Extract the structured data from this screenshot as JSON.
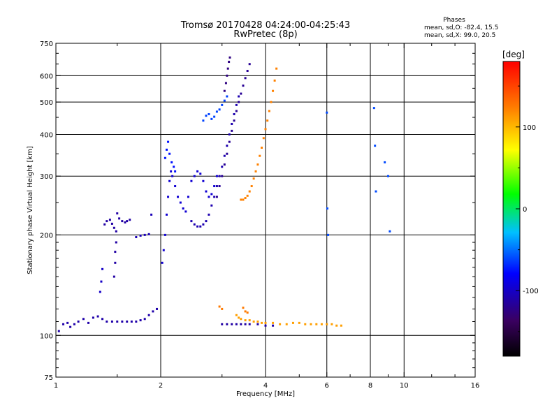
{
  "chart_data": {
    "type": "scatter",
    "title": "Tromsø 20170428 04:24:00-04:25:43",
    "subtitle": "RwPretec (8p)",
    "stats": {
      "heading": "Phases",
      "line1": "mean, sd,O: -82.4, 15.5",
      "line2": "mean, sd,X:  99.0, 20.5"
    },
    "xlabel": "Frequency [MHz]",
    "ylabel": "Stationary phase Virtual Height [km]",
    "x_scale": "log",
    "y_scale": "log",
    "xlim": [
      1,
      16
    ],
    "ylim": [
      75,
      750
    ],
    "grid": true,
    "x_ticks": [
      {
        "value": 1,
        "label": "1"
      },
      {
        "value": 2,
        "label": "2"
      },
      {
        "value": 4,
        "label": "4"
      },
      {
        "value": 6,
        "label": "6"
      },
      {
        "value": 8,
        "label": "8"
      },
      {
        "value": 10,
        "label": "10"
      },
      {
        "value": 16,
        "label": "16"
      }
    ],
    "x_gridlines": [
      2,
      4,
      6,
      8,
      10
    ],
    "x_minor_ticks": [
      1.5,
      3,
      5,
      7,
      9,
      12,
      14
    ],
    "y_ticks": [
      {
        "value": 75,
        "label": "75"
      },
      {
        "value": 100,
        "label": "100"
      },
      {
        "value": 200,
        "label": "200"
      },
      {
        "value": 300,
        "label": "300"
      },
      {
        "value": 400,
        "label": "400"
      },
      {
        "value": 500,
        "label": "500"
      },
      {
        "value": 600,
        "label": "600"
      },
      {
        "value": 750,
        "label": "750"
      }
    ],
    "y_gridlines": [
      100,
      200,
      300,
      400,
      500,
      600
    ],
    "y_minor_ticks": [
      80,
      85,
      90,
      95,
      110,
      120,
      130,
      140,
      150,
      160,
      170,
      180,
      190,
      250,
      350,
      450,
      550,
      650,
      700
    ],
    "colorbar": {
      "label": "[deg]",
      "min": -180,
      "max": 180,
      "ticks": [
        {
          "value": 100,
          "label": "100"
        },
        {
          "value": 0,
          "label": "0"
        },
        {
          "value": -100,
          "label": "-100"
        }
      ],
      "minor_ticks": [
        -150,
        -50,
        50,
        150
      ],
      "colors": [
        "#000000",
        "#3a0060",
        "#0000ff",
        "#00c0ff",
        "#00ff00",
        "#ffff00",
        "#ff8000",
        "#ff0000"
      ]
    },
    "series": [
      {
        "x": [
          1.02,
          1.05,
          1.08,
          1.1,
          1.13,
          1.16,
          1.2,
          1.24,
          1.28,
          1.32,
          1.36,
          1.4,
          1.45,
          1.5,
          1.55,
          1.6,
          1.65,
          1.7,
          1.75,
          1.8,
          1.85,
          1.9,
          1.95
        ],
        "y": [
          103,
          108,
          109,
          106,
          108,
          110,
          112,
          109,
          113,
          114,
          112,
          110,
          110,
          110,
          110,
          110,
          110,
          110,
          111,
          112,
          115,
          118,
          120
        ],
        "phase": -110
      },
      {
        "x": [
          1.38,
          1.4,
          1.43,
          1.45,
          1.47,
          1.5,
          1.52,
          1.55,
          1.58,
          1.6,
          1.63
        ],
        "y": [
          215,
          220,
          222,
          216,
          210,
          232,
          224,
          220,
          218,
          220,
          222
        ],
        "phase": -112
      },
      {
        "x": [
          1.47,
          1.48,
          1.48,
          1.49,
          1.49
        ],
        "y": [
          150,
          165,
          178,
          190,
          205
        ],
        "phase": -112
      },
      {
        "x": [
          1.34,
          1.35,
          1.36
        ],
        "y": [
          135,
          145,
          158
        ],
        "phase": -100
      },
      {
        "x": [
          1.7,
          1.75,
          1.8,
          1.85,
          1.88
        ],
        "y": [
          197,
          199,
          200,
          201,
          230
        ],
        "phase": -105
      },
      {
        "x": [
          2.02,
          2.04,
          2.06,
          2.08,
          2.1,
          2.12,
          2.14,
          2.16,
          2.2,
          2.24,
          2.28,
          2.32,
          2.36,
          2.4,
          2.45,
          2.5,
          2.55,
          2.6,
          2.65,
          2.7,
          2.75,
          2.8,
          2.85,
          2.9
        ],
        "y": [
          165,
          180,
          200,
          230,
          260,
          290,
          310,
          300,
          280,
          260,
          250,
          240,
          235,
          260,
          290,
          300,
          310,
          305,
          290,
          270,
          260,
          265,
          280,
          300
        ],
        "phase": -95
      },
      {
        "x": [
          2.06,
          2.08,
          2.1,
          2.12,
          2.15,
          2.18,
          2.2
        ],
        "y": [
          340,
          360,
          380,
          350,
          330,
          320,
          310
        ],
        "phase": -75
      },
      {
        "x": [
          2.45,
          2.5,
          2.55,
          2.6,
          2.65,
          2.7,
          2.75,
          2.8,
          2.85,
          2.9,
          2.95,
          3.0,
          3.05,
          3.1,
          3.15,
          3.2,
          3.25,
          3.3,
          3.35
        ],
        "y": [
          220,
          215,
          212,
          212,
          215,
          220,
          230,
          245,
          260,
          280,
          300,
          320,
          345,
          370,
          400,
          430,
          460,
          490,
          520
        ],
        "phase": -108
      },
      {
        "x": [
          2.9,
          2.95,
          3.0,
          3.05,
          3.1,
          3.15,
          3.2,
          3.25,
          3.3,
          3.35,
          3.4,
          3.45,
          3.5,
          3.55,
          3.6
        ],
        "y": [
          260,
          280,
          300,
          325,
          350,
          380,
          410,
          440,
          470,
          500,
          530,
          560,
          590,
          620,
          650
        ],
        "phase": -118
      },
      {
        "x": [
          3.05,
          3.08,
          3.1,
          3.12,
          3.14,
          3.16
        ],
        "y": [
          540,
          570,
          600,
          630,
          660,
          680
        ],
        "phase": -125
      },
      {
        "x": [
          2.65,
          2.7,
          2.75,
          2.8,
          2.85,
          2.9,
          2.95,
          3.0,
          3.05,
          3.1
        ],
        "y": [
          440,
          455,
          460,
          445,
          452,
          468,
          475,
          490,
          505,
          520
        ],
        "phase": -62
      },
      {
        "x": [
          3.4,
          3.45,
          3.5,
          3.55,
          3.6,
          3.65,
          3.7,
          3.75,
          3.8,
          3.85,
          3.9,
          3.95,
          4.0,
          4.05,
          4.1,
          4.15,
          4.2,
          4.25,
          4.3
        ],
        "y": [
          255,
          255,
          258,
          262,
          270,
          280,
          295,
          310,
          325,
          345,
          365,
          390,
          415,
          440,
          470,
          500,
          540,
          580,
          630
        ],
        "phase": 122
      },
      {
        "x": [
          3.3,
          3.35,
          3.4,
          3.5,
          3.6,
          3.7,
          3.8,
          3.9,
          4.0,
          4.2,
          4.4,
          4.6,
          4.8,
          5.0,
          5.2,
          5.4,
          5.6,
          5.8,
          6.0,
          6.2,
          6.4,
          6.6
        ],
        "y": [
          115,
          113,
          112,
          111,
          111,
          110,
          110,
          109,
          109,
          109,
          108,
          108,
          109,
          109,
          108,
          108,
          108,
          108,
          108,
          108,
          107,
          107
        ],
        "phase": 110
      },
      {
        "x": [
          3.0,
          3.1,
          3.2,
          3.3,
          3.4,
          3.5,
          3.6,
          3.8,
          4.0,
          4.2
        ],
        "y": [
          108,
          108,
          108,
          108,
          108,
          108,
          108,
          108,
          107,
          107
        ],
        "phase": -112
      },
      {
        "x": [
          2.95,
          3.0,
          3.45,
          3.5,
          3.55
        ],
        "y": [
          122,
          120,
          121,
          118,
          117
        ],
        "phase": 125
      },
      {
        "x": [
          6.0,
          6.02,
          6.05,
          8.2,
          8.25,
          8.3,
          8.8,
          9.0,
          9.1
        ],
        "y": [
          465,
          240,
          200,
          480,
          370,
          270,
          330,
          300,
          205
        ],
        "phase": -60
      }
    ]
  }
}
